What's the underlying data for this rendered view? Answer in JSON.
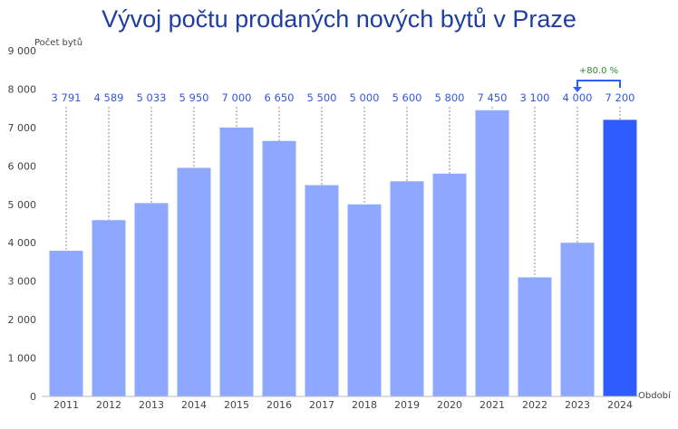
{
  "chart_data": {
    "type": "bar",
    "title": "Vývoj počtu prodaných nových bytů v Praze",
    "ylabel": "Počet bytů",
    "xlabel": "Období",
    "ylim": [
      0,
      9000
    ],
    "yticks": [
      0,
      1000,
      2000,
      3000,
      4000,
      5000,
      6000,
      7000,
      8000,
      9000
    ],
    "ytick_labels": [
      "0",
      "1 000",
      "2 000",
      "3 000",
      "4 000",
      "5 000",
      "6 000",
      "7 000",
      "8 000",
      "9 000"
    ],
    "categories": [
      "2011",
      "2012",
      "2013",
      "2014",
      "2015",
      "2016",
      "2017",
      "2018",
      "2019",
      "2020",
      "2021",
      "2022",
      "2023",
      "2024"
    ],
    "values": [
      3791,
      4589,
      5033,
      5950,
      7000,
      6650,
      5500,
      5000,
      5600,
      5800,
      7450,
      3100,
      4000,
      7200
    ],
    "value_labels": [
      "3 791",
      "4 589",
      "5 033",
      "5 950",
      "7 000",
      "6 650",
      "5 500",
      "5 000",
      "5 600",
      "5 800",
      "7 450",
      "3 100",
      "4 000",
      "7 200"
    ],
    "grid": false,
    "colors": {
      "bar": "#8fa8ff",
      "highlight": "#2f5cff",
      "label": "#3658d6",
      "annotation": "#2e8b2e"
    },
    "highlight_index": 13,
    "annotation": {
      "text": "+80.0 %",
      "from_index": 12,
      "to_index": 13
    }
  }
}
